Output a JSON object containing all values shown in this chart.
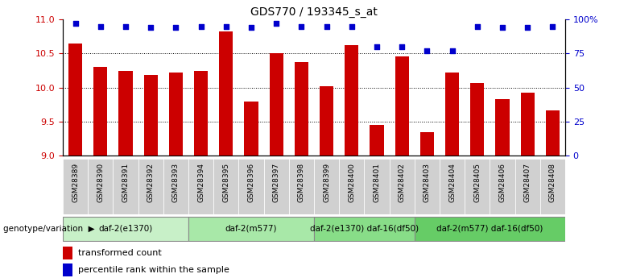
{
  "title": "GDS770 / 193345_s_at",
  "categories": [
    "GSM28389",
    "GSM28390",
    "GSM28391",
    "GSM28392",
    "GSM28393",
    "GSM28394",
    "GSM28395",
    "GSM28396",
    "GSM28397",
    "GSM28398",
    "GSM28399",
    "GSM28400",
    "GSM28401",
    "GSM28402",
    "GSM28403",
    "GSM28404",
    "GSM28405",
    "GSM28406",
    "GSM28407",
    "GSM28408"
  ],
  "bar_values": [
    10.65,
    10.3,
    10.25,
    10.18,
    10.22,
    10.25,
    10.82,
    9.79,
    10.5,
    10.38,
    10.02,
    10.62,
    9.45,
    10.46,
    9.35,
    10.22,
    10.07,
    9.83,
    9.92,
    9.67
  ],
  "percentile_values": [
    97,
    95,
    95,
    94,
    94,
    95,
    95,
    94,
    97,
    95,
    95,
    95,
    80,
    80,
    77,
    77,
    95,
    94,
    94,
    95
  ],
  "bar_color": "#cc0000",
  "dot_color": "#0000cc",
  "ylim_left": [
    9,
    11
  ],
  "ylim_right": [
    0,
    100
  ],
  "yticks_left": [
    9,
    9.5,
    10,
    10.5,
    11
  ],
  "yticks_right": [
    0,
    25,
    50,
    75,
    100
  ],
  "ylabel_right_labels": [
    "0",
    "25",
    "50",
    "75",
    "100%"
  ],
  "groups": [
    {
      "label": "daf-2(e1370)",
      "start": 0,
      "end": 5,
      "color": "#c8f0c8"
    },
    {
      "label": "daf-2(m577)",
      "start": 5,
      "end": 10,
      "color": "#a8e8a8"
    },
    {
      "label": "daf-2(e1370) daf-16(df50)",
      "start": 10,
      "end": 14,
      "color": "#88dd88"
    },
    {
      "label": "daf-2(m577) daf-16(df50)",
      "start": 14,
      "end": 20,
      "color": "#66cc66"
    }
  ],
  "legend_items": [
    {
      "label": "transformed count",
      "color": "#cc0000"
    },
    {
      "label": "percentile rank within the sample",
      "color": "#0000cc"
    }
  ],
  "background_color": "#ffffff",
  "grid_color": "#555555"
}
